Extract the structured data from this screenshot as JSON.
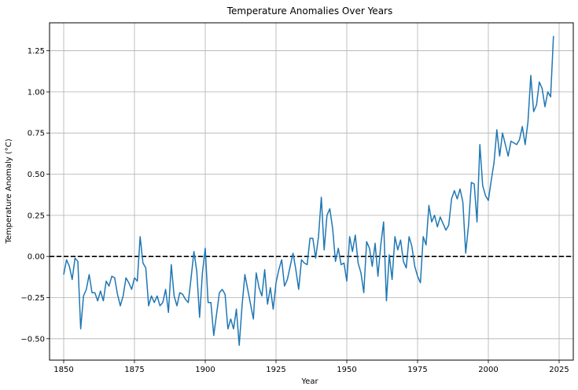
{
  "chart_data": {
    "type": "line",
    "title": "Temperature Anomalies Over Years",
    "xlabel": "Year",
    "ylabel": "Temperature Anomaly (°C)",
    "xlim": [
      1845,
      2030
    ],
    "ylim": [
      -0.63,
      1.42
    ],
    "xticks": [
      1850,
      1875,
      1900,
      1925,
      1950,
      1975,
      2000,
      2025
    ],
    "xtick_labels": [
      "1850",
      "1875",
      "1900",
      "1925",
      "1950",
      "1975",
      "2000",
      "2025"
    ],
    "yticks": [
      -0.5,
      -0.25,
      0,
      0.25,
      0.5,
      0.75,
      1.0,
      1.25
    ],
    "ytick_labels": [
      "−0.50",
      "−0.25",
      "0.00",
      "0.25",
      "0.50",
      "0.75",
      "1.00",
      "1.25"
    ],
    "grid": true,
    "reference_line": {
      "y": 0,
      "style": "dashed",
      "color": "#000000"
    },
    "series": [
      {
        "color": "#1f77b4",
        "x": [
          1850,
          1851,
          1852,
          1853,
          1854,
          1855,
          1856,
          1857,
          1858,
          1859,
          1860,
          1861,
          1862,
          1863,
          1864,
          1865,
          1866,
          1867,
          1868,
          1869,
          1870,
          1871,
          1872,
          1873,
          1874,
          1875,
          1876,
          1877,
          1878,
          1879,
          1880,
          1881,
          1882,
          1883,
          1884,
          1885,
          1886,
          1887,
          1888,
          1889,
          1890,
          1891,
          1892,
          1893,
          1894,
          1895,
          1896,
          1897,
          1898,
          1899,
          1900,
          1901,
          1902,
          1903,
          1904,
          1905,
          1906,
          1907,
          1908,
          1909,
          1910,
          1911,
          1912,
          1913,
          1914,
          1915,
          1916,
          1917,
          1918,
          1919,
          1920,
          1921,
          1922,
          1923,
          1924,
          1925,
          1926,
          1927,
          1928,
          1929,
          1930,
          1931,
          1932,
          1933,
          1934,
          1935,
          1936,
          1937,
          1938,
          1939,
          1940,
          1941,
          1942,
          1943,
          1944,
          1945,
          1946,
          1947,
          1948,
          1949,
          1950,
          1951,
          1952,
          1953,
          1954,
          1955,
          1956,
          1957,
          1958,
          1959,
          1960,
          1961,
          1962,
          1963,
          1964,
          1965,
          1966,
          1967,
          1968,
          1969,
          1970,
          1971,
          1972,
          1973,
          1974,
          1975,
          1976,
          1977,
          1978,
          1979,
          1980,
          1981,
          1982,
          1983,
          1984,
          1985,
          1986,
          1987,
          1988,
          1989,
          1990,
          1991,
          1992,
          1993,
          1994,
          1995,
          1996,
          1997,
          1998,
          1999,
          2000,
          2001,
          2002,
          2003,
          2004,
          2005,
          2006,
          2007,
          2008,
          2009,
          2010,
          2011,
          2012,
          2013,
          2014,
          2015,
          2016,
          2017,
          2018,
          2019,
          2020,
          2021,
          2022,
          2023
        ],
        "y": [
          -0.11,
          -0.02,
          -0.06,
          -0.14,
          -0.01,
          -0.03,
          -0.44,
          -0.24,
          -0.2,
          -0.11,
          -0.22,
          -0.22,
          -0.27,
          -0.21,
          -0.27,
          -0.15,
          -0.18,
          -0.12,
          -0.13,
          -0.23,
          -0.3,
          -0.24,
          -0.13,
          -0.16,
          -0.2,
          -0.13,
          -0.15,
          0.12,
          -0.04,
          -0.07,
          -0.3,
          -0.24,
          -0.28,
          -0.24,
          -0.3,
          -0.28,
          -0.2,
          -0.34,
          -0.05,
          -0.24,
          -0.3,
          -0.22,
          -0.23,
          -0.26,
          -0.28,
          -0.13,
          0.03,
          -0.09,
          -0.37,
          -0.1,
          0.05,
          -0.28,
          -0.28,
          -0.48,
          -0.35,
          -0.22,
          -0.2,
          -0.23,
          -0.44,
          -0.38,
          -0.44,
          -0.32,
          -0.54,
          -0.3,
          -0.11,
          -0.2,
          -0.29,
          -0.38,
          -0.1,
          -0.19,
          -0.24,
          -0.08,
          -0.29,
          -0.19,
          -0.32,
          -0.16,
          -0.08,
          -0.02,
          -0.18,
          -0.14,
          -0.06,
          0.02,
          -0.08,
          -0.2,
          -0.02,
          -0.04,
          -0.05,
          0.11,
          0.11,
          -0.01,
          0.12,
          0.36,
          0.04,
          0.25,
          0.29,
          0.17,
          -0.03,
          0.05,
          -0.05,
          -0.04,
          -0.15,
          0.12,
          0.03,
          0.13,
          -0.04,
          -0.1,
          -0.22,
          0.09,
          0.05,
          -0.06,
          0.08,
          -0.12,
          0.07,
          0.21,
          -0.27,
          0.01,
          -0.14,
          0.12,
          0.04,
          0.1,
          -0.03,
          -0.07,
          0.12,
          0.06,
          -0.06,
          -0.12,
          -0.16,
          0.12,
          0.07,
          0.31,
          0.21,
          0.25,
          0.18,
          0.24,
          0.2,
          0.16,
          0.19,
          0.35,
          0.4,
          0.35,
          0.41,
          0.33,
          0.02,
          0.19,
          0.45,
          0.44,
          0.21,
          0.68,
          0.43,
          0.37,
          0.34,
          0.46,
          0.57,
          0.77,
          0.61,
          0.75,
          0.68,
          0.61,
          0.7,
          0.69,
          0.68,
          0.71,
          0.79,
          0.68,
          0.82,
          1.1,
          0.88,
          0.92,
          1.06,
          1.02,
          0.91,
          1.0,
          0.97,
          1.34
        ]
      }
    ]
  }
}
